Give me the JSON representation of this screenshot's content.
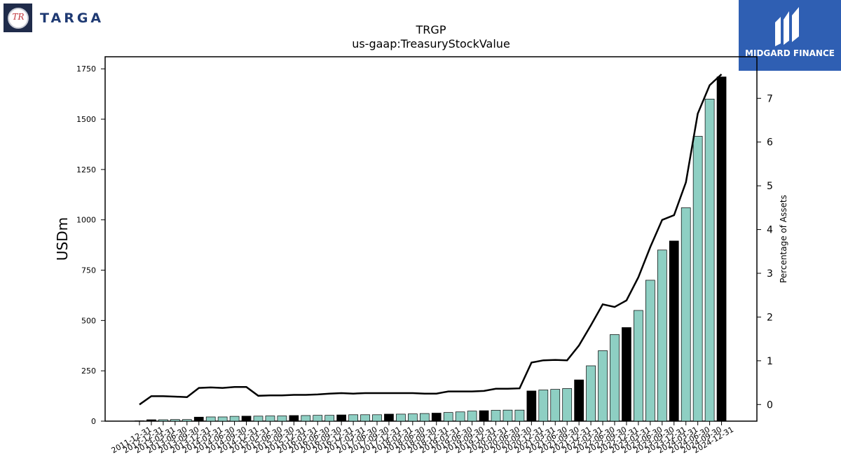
{
  "header": {
    "left_logo_text": "TARGA",
    "left_logo_initials": "TR",
    "right_logo_text": "MIDGARD FINANCE",
    "title": "TRGP",
    "subtitle": "us-gaap:TreasuryStockValue"
  },
  "colors": {
    "bar_default": "#8ecfc3",
    "bar_highlight": "#000000",
    "line": "#000000",
    "right_logo_bg": "#2f5fb3",
    "left_logo_bg": "#1f2b4a"
  },
  "chart_data": {
    "type": "bar",
    "ylabel": "USDm",
    "y2label": "Percentage of Assets",
    "ylim": [
      0,
      1810
    ],
    "y2lim": [
      -0.38,
      7.95
    ],
    "yticks": [
      0,
      250,
      500,
      750,
      1000,
      1250,
      1500,
      1750
    ],
    "y2ticks": [
      0,
      1,
      2,
      3,
      4,
      5,
      6,
      7
    ],
    "categories": [
      "2011-12-31",
      "2012-12-31",
      "2013-03-31",
      "2013-06-30",
      "2013-09-30",
      "2013-12-31",
      "2014-03-31",
      "2014-06-30",
      "2014-09-30",
      "2014-12-31",
      "2015-03-31",
      "2015-06-30",
      "2015-09-30",
      "2015-12-31",
      "2016-03-31",
      "2016-06-30",
      "2016-09-30",
      "2016-12-31",
      "2017-03-31",
      "2017-06-30",
      "2017-09-30",
      "2017-12-31",
      "2018-03-31",
      "2018-06-30",
      "2018-09-30",
      "2018-12-31",
      "2019-03-31",
      "2019-06-30",
      "2019-09-30",
      "2019-12-31",
      "2020-03-31",
      "2020-06-30",
      "2020-09-30",
      "2020-12-31",
      "2021-03-31",
      "2021-06-30",
      "2021-09-30",
      "2021-12-31",
      "2022-03-31",
      "2022-06-30",
      "2022-09-30",
      "2022-12-31",
      "2023-03-31",
      "2023-06-30",
      "2023-09-30",
      "2023-12-31",
      "2024-03-31",
      "2024-06-30",
      "2024-09-30",
      "2024-12-31"
    ],
    "series": [
      {
        "kind": "bar",
        "axis": "left",
        "values": [
          0,
          7,
          7,
          8,
          8,
          20,
          21,
          21,
          24,
          25,
          25,
          26,
          26,
          28,
          28,
          29,
          29,
          31,
          32,
          32,
          32,
          35,
          35,
          36,
          38,
          40,
          43,
          46,
          50,
          52,
          54,
          55,
          55,
          150,
          155,
          158,
          162,
          205,
          275,
          350,
          430,
          465,
          550,
          700,
          850,
          895,
          1060,
          1415,
          1600,
          1710
        ],
        "highlight": [
          false,
          true,
          false,
          false,
          false,
          true,
          false,
          false,
          false,
          true,
          false,
          false,
          false,
          true,
          false,
          false,
          false,
          true,
          false,
          false,
          false,
          true,
          false,
          false,
          false,
          true,
          false,
          false,
          false,
          true,
          false,
          false,
          false,
          true,
          false,
          false,
          false,
          true,
          false,
          false,
          false,
          true,
          false,
          false,
          false,
          true,
          false,
          false,
          false,
          true
        ]
      },
      {
        "kind": "line",
        "axis": "right",
        "values": [
          0.0,
          0.19,
          0.19,
          0.18,
          0.17,
          0.38,
          0.39,
          0.38,
          0.4,
          0.4,
          0.2,
          0.21,
          0.21,
          0.22,
          0.22,
          0.23,
          0.25,
          0.26,
          0.25,
          0.26,
          0.26,
          0.26,
          0.26,
          0.26,
          0.25,
          0.25,
          0.3,
          0.3,
          0.3,
          0.31,
          0.36,
          0.36,
          0.37,
          0.96,
          1.01,
          1.02,
          1.01,
          1.35,
          1.81,
          2.29,
          2.23,
          2.38,
          2.91,
          3.6,
          4.22,
          4.33,
          5.08,
          6.65,
          7.3,
          7.55
        ]
      }
    ]
  }
}
